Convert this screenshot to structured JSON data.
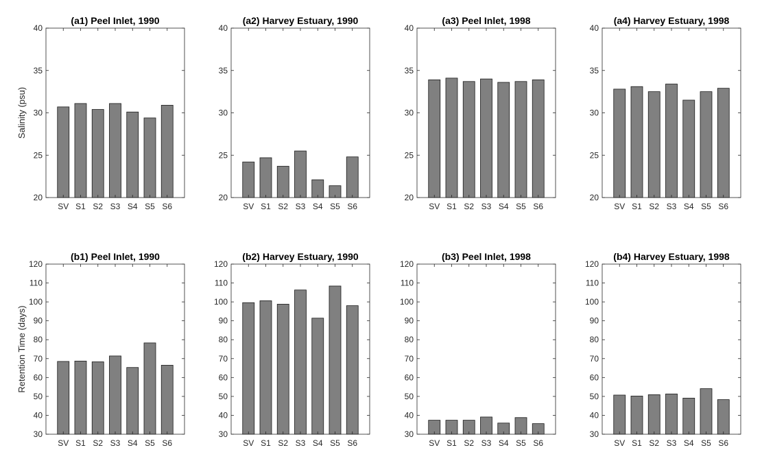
{
  "colors": {
    "bar_fill": "#808080",
    "axis": "#262626"
  },
  "chart_data": [
    {
      "type": "bar",
      "title": "(a1) Peel Inlet, 1990",
      "ylabel": "Salinity (psu)",
      "categories": [
        "SV",
        "S1",
        "S2",
        "S3",
        "S4",
        "S5",
        "S6"
      ],
      "values": [
        30.7,
        31.1,
        30.4,
        31.1,
        30.1,
        29.4,
        30.9
      ],
      "ylim": [
        20,
        40
      ],
      "yticks": [
        "20",
        "25",
        "30",
        "35",
        "40"
      ],
      "grid": false
    },
    {
      "type": "bar",
      "title": "(a2) Harvey Estuary, 1990",
      "ylabel": "",
      "categories": [
        "SV",
        "S1",
        "S2",
        "S3",
        "S4",
        "S5",
        "S6"
      ],
      "values": [
        24.2,
        24.7,
        23.7,
        25.5,
        22.1,
        21.4,
        24.8
      ],
      "ylim": [
        20,
        40
      ],
      "yticks": [
        "20",
        "25",
        "30",
        "35",
        "40"
      ],
      "grid": false
    },
    {
      "type": "bar",
      "title": "(a3) Peel Inlet, 1998",
      "ylabel": "",
      "categories": [
        "SV",
        "S1",
        "S2",
        "S3",
        "S4",
        "S5",
        "S6"
      ],
      "values": [
        33.9,
        34.1,
        33.7,
        34.0,
        33.6,
        33.7,
        33.9
      ],
      "ylim": [
        20,
        40
      ],
      "yticks": [
        "20",
        "25",
        "30",
        "35",
        "40"
      ],
      "grid": false
    },
    {
      "type": "bar",
      "title": "(a4) Harvey Estuary, 1998",
      "ylabel": "",
      "categories": [
        "SV",
        "S1",
        "S2",
        "S3",
        "S4",
        "S5",
        "S6"
      ],
      "values": [
        32.8,
        33.1,
        32.5,
        33.4,
        31.5,
        32.5,
        32.9
      ],
      "ylim": [
        20,
        40
      ],
      "yticks": [
        "20",
        "25",
        "30",
        "35",
        "40"
      ],
      "grid": false
    },
    {
      "type": "bar",
      "title": "(b1) Peel Inlet, 1990",
      "ylabel": "Retention Time (days)",
      "categories": [
        "SV",
        "S1",
        "S2",
        "S3",
        "S4",
        "S5",
        "S6"
      ],
      "values": [
        68.5,
        68.7,
        68.3,
        71.4,
        65.3,
        78.3,
        66.5
      ],
      "ylim": [
        30,
        120
      ],
      "yticks": [
        "30",
        "40",
        "50",
        "60",
        "70",
        "80",
        "90",
        "100",
        "110",
        "120"
      ],
      "grid": false
    },
    {
      "type": "bar",
      "title": "(b2) Harvey Estuary, 1990",
      "ylabel": "",
      "categories": [
        "SV",
        "S1",
        "S2",
        "S3",
        "S4",
        "S5",
        "S6"
      ],
      "values": [
        99.6,
        100.6,
        98.8,
        106.3,
        91.4,
        108.4,
        98.0
      ],
      "ylim": [
        30,
        120
      ],
      "yticks": [
        "30",
        "40",
        "50",
        "60",
        "70",
        "80",
        "90",
        "100",
        "110",
        "120"
      ],
      "grid": false
    },
    {
      "type": "bar",
      "title": "(b3) Peel Inlet, 1998",
      "ylabel": "",
      "categories": [
        "SV",
        "S1",
        "S2",
        "S3",
        "S4",
        "S5",
        "S6"
      ],
      "values": [
        37.4,
        37.4,
        37.4,
        39.1,
        35.9,
        38.8,
        35.6
      ],
      "ylim": [
        30,
        120
      ],
      "yticks": [
        "30",
        "40",
        "50",
        "60",
        "70",
        "80",
        "90",
        "100",
        "110",
        "120"
      ],
      "grid": false
    },
    {
      "type": "bar",
      "title": "(b4) Harvey Estuary, 1998",
      "ylabel": "",
      "categories": [
        "SV",
        "S1",
        "S2",
        "S3",
        "S4",
        "S5",
        "S6"
      ],
      "values": [
        50.7,
        50.2,
        50.9,
        51.3,
        49.1,
        54.1,
        48.3
      ],
      "ylim": [
        30,
        120
      ],
      "yticks": [
        "30",
        "40",
        "50",
        "60",
        "70",
        "80",
        "90",
        "100",
        "110",
        "120"
      ],
      "grid": false
    }
  ]
}
